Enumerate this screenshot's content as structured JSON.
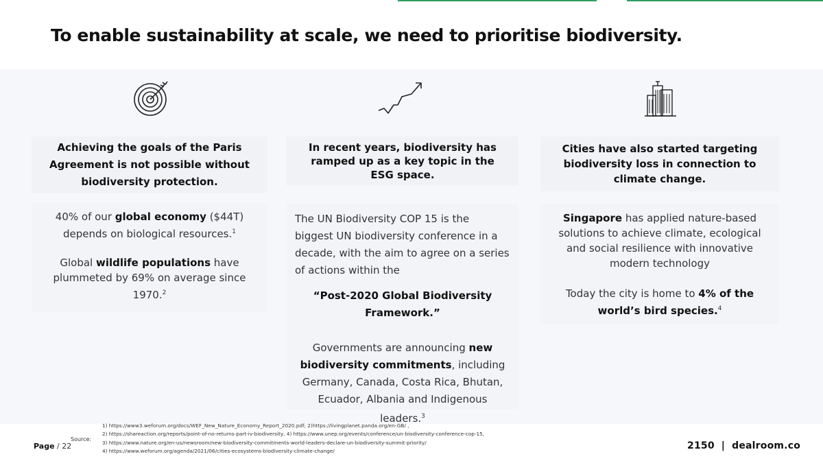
{
  "title": "To enable sustainability at scale, we need to prioritise biodiversity.",
  "columns": [
    {
      "icon": "target-icon",
      "heading": "Achieving the goals of the Paris Agreement is not possible without biodiversity protection.",
      "p1_pre": "40% of our ",
      "p1_bold": "global economy",
      "p1_post": " ($44T) depends on biological resources.",
      "p1_sup": "1",
      "p2_pre": "Global ",
      "p2_bold": "wildlife populations",
      "p2_post": " have plummeted by 69% on average since 1970.",
      "p2_sup": "2"
    },
    {
      "icon": "trend-up-icon",
      "heading": "In recent years, biodiversity has ramped up as a key topic in the ESG space.",
      "p1": "The UN Biodiversity COP 15 is the biggest UN biodiversity conference in a decade, with the aim to agree on a series of actions within the",
      "quote": "“Post-2020 Global Biodiversity Framework.”",
      "p2_pre": "Governments are announcing ",
      "p2_bold": "new biodiversity commitments",
      "p2_post": ", including Germany, Canada, Costa Rica, Bhutan, Ecuador, Albania and Indigenous leaders.",
      "p2_sup": "3"
    },
    {
      "icon": "city-buildings-icon",
      "heading": "Cities have also started targeting biodiversity loss in connection to climate change.",
      "p1_bold": "Singapore",
      "p1_post": " has applied nature-based solutions to achieve climate, ecological and social resilience with innovative modern technology",
      "p2_pre": "Today the city  is home to ",
      "p2_bold": "4% of the world’s bird species.",
      "p2_sup": "4"
    }
  ],
  "footer": {
    "page_label": "Page",
    "page_number": "/ 22",
    "source_label": "Source:",
    "sources": [
      "1) https://www3.weforum.org/docs/WEF_New_Nature_Economy_Report_2020.pdf; 2)https://livingplanet.panda.org/en-GB/ ,",
      "2) https://shareaction.org/reports/point-of-no-returns-part-iv-biodiversity, 4) https://www.unep.org/events/conference/un-biodiversity-conference-cop-15,",
      "3) https://www.nature.org/en-us/newsroom/new-biodiversity-commitments-world-leaders-declare-un-biodiversity-summit-priority/",
      "4) https://www.weforum.org/agenda/2021/06/cities-ecosystems-biodiversity-climate-change/"
    ],
    "logo_left": "2150",
    "logo_sep": "|",
    "logo_right": "dealroom.co"
  }
}
